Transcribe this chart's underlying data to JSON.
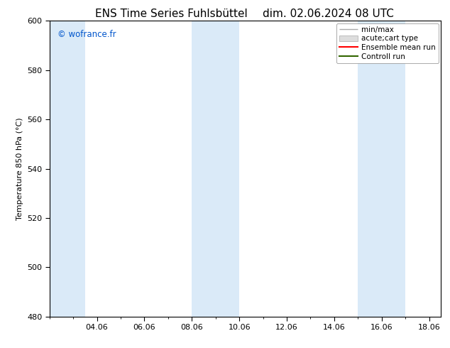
{
  "title_left": "ENS Time Series Fuhlsbüttel",
  "title_right": "dim. 02.06.2024 08 UTC",
  "ylabel": "Temperature 850 hPa (°C)",
  "watermark": "© wofrance.fr",
  "watermark_color": "#0055cc",
  "ylim": [
    480,
    600
  ],
  "yticks": [
    480,
    500,
    520,
    540,
    560,
    580,
    600
  ],
  "xtick_labels": [
    "04.06",
    "06.06",
    "08.06",
    "10.06",
    "12.06",
    "14.06",
    "16.06",
    "18.06"
  ],
  "xtick_positions": [
    4,
    6,
    8,
    10,
    12,
    14,
    16,
    18
  ],
  "xlim": [
    2,
    18.5
  ],
  "background_color": "#ffffff",
  "plot_bg_color": "#ffffff",
  "shaded_bands": [
    {
      "x_start": 2.0,
      "x_end": 3.5,
      "color": "#daeaf8"
    },
    {
      "x_start": 8.0,
      "x_end": 10.0,
      "color": "#daeaf8"
    },
    {
      "x_start": 15.0,
      "x_end": 17.0,
      "color": "#daeaf8"
    }
  ],
  "legend_entries": [
    {
      "label": "min/max",
      "color": "#aaaaaa",
      "style": "errorbar"
    },
    {
      "label": "acute;cart type",
      "color": "#cccccc",
      "style": "fill"
    },
    {
      "label": "Ensemble mean run",
      "color": "#ff0000",
      "style": "line"
    },
    {
      "label": "Controll run",
      "color": "#336600",
      "style": "line"
    }
  ],
  "title_fontsize": 11,
  "tick_fontsize": 8,
  "ylabel_fontsize": 8,
  "legend_fontsize": 7.5
}
